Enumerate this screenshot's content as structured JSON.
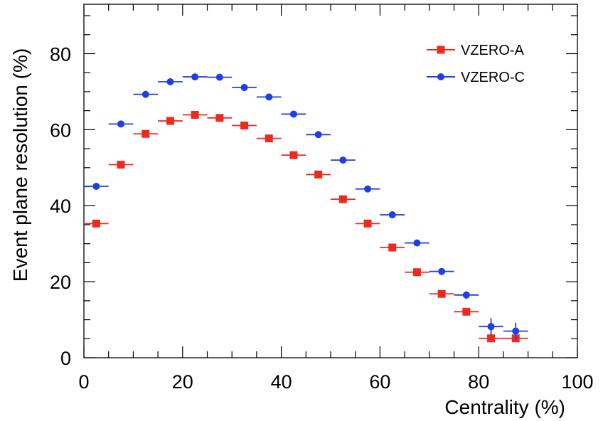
{
  "chart_data": {
    "type": "scatter",
    "title": "",
    "xlabel": "Centrality (%)",
    "ylabel": "Event plane resolution (%)",
    "xlim": [
      0,
      100
    ],
    "ylim": [
      0,
      93
    ],
    "xticks": [
      0,
      20,
      40,
      60,
      80,
      100
    ],
    "yticks": [
      0,
      20,
      40,
      60,
      80
    ],
    "grid": false,
    "legend_position": "top-right",
    "series": [
      {
        "name": "VZERO-A",
        "color": "#ee2a1e",
        "marker": "square",
        "x": [
          2.5,
          7.5,
          12.5,
          17.5,
          22.5,
          27.5,
          32.5,
          37.5,
          42.5,
          47.5,
          52.5,
          57.5,
          62.5,
          67.5,
          72.5,
          77.5,
          82.5,
          87.5
        ],
        "xerr": [
          2.5,
          2.5,
          2.5,
          2.5,
          2.5,
          2.5,
          2.5,
          2.5,
          2.5,
          2.5,
          2.5,
          2.5,
          2.5,
          2.5,
          2.5,
          2.5,
          2.5,
          2.5
        ],
        "y": [
          35.3,
          50.8,
          58.9,
          62.3,
          63.9,
          63.1,
          61.1,
          57.7,
          53.3,
          48.2,
          41.7,
          35.3,
          29.0,
          22.5,
          16.8,
          12.1,
          5.1,
          5.1
        ],
        "yerr": [
          0.3,
          0.3,
          0.3,
          0.3,
          0.3,
          0.3,
          0.3,
          0.3,
          0.3,
          0.3,
          0.3,
          0.3,
          0.3,
          0.3,
          0.4,
          0.5,
          0.8,
          1.0
        ]
      },
      {
        "name": "VZERO-C",
        "color": "#1e3ee8",
        "marker": "circle",
        "x": [
          2.5,
          7.5,
          12.5,
          17.5,
          22.5,
          27.5,
          32.5,
          37.5,
          42.5,
          47.5,
          52.5,
          57.5,
          62.5,
          67.5,
          72.5,
          77.5,
          82.5,
          87.5
        ],
        "xerr": [
          2.5,
          2.5,
          2.5,
          2.5,
          2.5,
          2.5,
          2.5,
          2.5,
          2.5,
          2.5,
          2.5,
          2.5,
          2.5,
          2.5,
          2.5,
          2.5,
          2.5,
          2.5
        ],
        "y": [
          45.1,
          61.5,
          69.3,
          72.6,
          73.9,
          73.8,
          71.1,
          68.6,
          64.1,
          58.7,
          52.0,
          44.4,
          37.6,
          30.2,
          22.7,
          16.5,
          8.2,
          7.0
        ],
        "yerr": [
          0.3,
          0.3,
          0.3,
          0.3,
          0.3,
          0.3,
          0.3,
          0.3,
          0.3,
          0.3,
          0.3,
          0.3,
          0.4,
          0.5,
          0.6,
          1.0,
          2.2,
          2.2
        ]
      }
    ]
  }
}
